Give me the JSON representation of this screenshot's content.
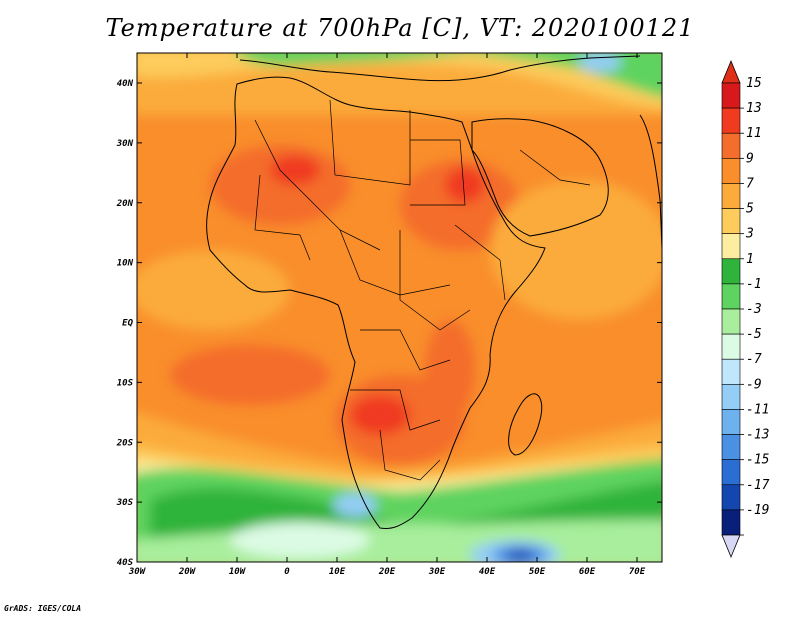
{
  "title": "Temperature at 700hPa [C], VT: 2020100121",
  "credit": "GrADS: IGES/COLA",
  "map": {
    "lat_labels": [
      "40N",
      "30N",
      "20N",
      "10N",
      "EQ",
      "10S",
      "20S",
      "30S",
      "40S"
    ],
    "lon_labels": [
      "30W",
      "20W",
      "10W",
      "0",
      "10E",
      "20E",
      "30E",
      "40E",
      "50E",
      "60E",
      "70E"
    ]
  },
  "colorbar": {
    "labels": [
      "15",
      "13",
      "11",
      "9",
      "7",
      "5",
      "3",
      "1",
      "-1",
      "-3",
      "-5",
      "-7",
      "-9",
      "-11",
      "-13",
      "-15",
      "-17",
      "-19"
    ],
    "colors": [
      "#d7191c",
      "#f03b20",
      "#f46d2c",
      "#f98e2b",
      "#fbab3a",
      "#fdcc5c",
      "#fbeea0",
      "#2fb33a",
      "#5fd35f",
      "#a8ee9c",
      "#dcfbe4",
      "#bfe6fb",
      "#94cdf6",
      "#6db2ef",
      "#4a90e3",
      "#2a6ed4",
      "#1446b0",
      "#0a1f7a"
    ],
    "cap_top": "#e03018",
    "cap_bottom": "#d8d8f4"
  },
  "colors": {
    "bg_warm": "#f98e2b",
    "hot": "#f46d2c",
    "hottest": "#f03b20",
    "mild": "#fbab3a",
    "cool": "#fdcc5c",
    "pale": "#fbeea0",
    "green": "#5fd35f",
    "green_dark": "#2fb33a",
    "light_green": "#a8ee9c",
    "cyan": "#dcfbe4",
    "blue_light": "#94cdf6",
    "blue": "#4a90e3",
    "blue_dark": "#1446b0"
  }
}
